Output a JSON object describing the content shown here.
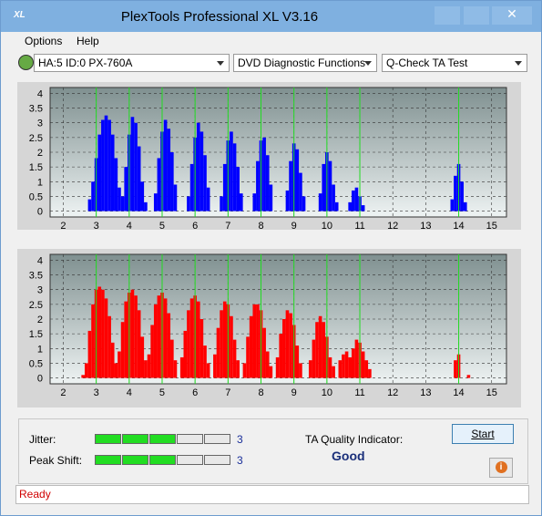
{
  "window": {
    "title": "PlexTools Professional XL V3.16"
  },
  "menu": [
    "Options",
    "Help"
  ],
  "toolbar": {
    "drive": "HA:5 ID:0  PX-760A",
    "function": "DVD Diagnostic Functions",
    "test": "Q-Check TA Test"
  },
  "chart_data": [
    {
      "type": "bar",
      "color": "#0000ff",
      "xlim": [
        1.6,
        15.45
      ],
      "ylim": [
        -0.2,
        4.2
      ],
      "xticks": [
        2,
        3,
        4,
        5,
        6,
        7,
        8,
        9,
        10,
        11,
        12,
        13,
        14,
        15
      ],
      "yticks": [
        0,
        0.5,
        1,
        1.5,
        2,
        2.5,
        3,
        3.5,
        4
      ],
      "markers": [
        3,
        4,
        5,
        6,
        7,
        8,
        9,
        10,
        11,
        14
      ],
      "grid": true,
      "x": [
        2.8,
        2.9,
        3.0,
        3.1,
        3.2,
        3.3,
        3.4,
        3.5,
        3.6,
        3.7,
        3.8,
        3.9,
        4.0,
        4.1,
        4.2,
        4.3,
        4.4,
        4.5,
        4.8,
        4.9,
        5.0,
        5.1,
        5.2,
        5.3,
        5.4,
        5.8,
        5.9,
        6.0,
        6.1,
        6.2,
        6.3,
        6.4,
        6.8,
        6.9,
        7.0,
        7.1,
        7.2,
        7.3,
        7.4,
        7.8,
        7.9,
        8.0,
        8.1,
        8.2,
        8.3,
        8.8,
        8.9,
        9.0,
        9.1,
        9.2,
        9.3,
        9.8,
        9.9,
        10.0,
        10.1,
        10.2,
        10.3,
        10.7,
        10.8,
        10.9,
        11.0,
        11.1,
        13.8,
        13.9,
        14.0,
        14.1,
        14.2
      ],
      "values": [
        0.4,
        1.0,
        1.8,
        2.6,
        3.1,
        3.25,
        3.1,
        2.6,
        1.8,
        0.8,
        0.5,
        1.5,
        2.6,
        3.2,
        3.0,
        2.2,
        1.0,
        0.3,
        0.6,
        1.8,
        2.7,
        3.1,
        2.8,
        2.0,
        0.9,
        0.5,
        1.6,
        2.5,
        3.0,
        2.7,
        1.9,
        0.8,
        0.5,
        1.6,
        2.4,
        2.7,
        2.3,
        1.5,
        0.6,
        0.6,
        1.7,
        2.4,
        2.5,
        1.9,
        0.9,
        0.7,
        1.7,
        2.3,
        2.1,
        1.3,
        0.5,
        0.6,
        1.6,
        2.0,
        1.7,
        0.9,
        0.3,
        0.3,
        0.7,
        0.8,
        0.5,
        0.2,
        0.4,
        1.2,
        1.6,
        1.0,
        0.3
      ]
    },
    {
      "type": "bar",
      "color": "#ff0000",
      "xlim": [
        1.6,
        15.45
      ],
      "ylim": [
        -0.2,
        4.2
      ],
      "xticks": [
        2,
        3,
        4,
        5,
        6,
        7,
        8,
        9,
        10,
        11,
        12,
        13,
        14,
        15
      ],
      "yticks": [
        0,
        0.5,
        1,
        1.5,
        2,
        2.5,
        3,
        3.5,
        4
      ],
      "markers": [
        3,
        4,
        5,
        6,
        7,
        8,
        9,
        10,
        11,
        14
      ],
      "grid": true,
      "x": [
        2.6,
        2.7,
        2.8,
        2.9,
        3.0,
        3.1,
        3.2,
        3.3,
        3.4,
        3.5,
        3.6,
        3.7,
        3.8,
        3.9,
        4.0,
        4.1,
        4.2,
        4.3,
        4.4,
        4.5,
        4.6,
        4.7,
        4.8,
        4.9,
        5.0,
        5.1,
        5.2,
        5.3,
        5.4,
        5.6,
        5.7,
        5.8,
        5.9,
        6.0,
        6.1,
        6.2,
        6.3,
        6.4,
        6.6,
        6.7,
        6.8,
        6.9,
        7.0,
        7.1,
        7.2,
        7.3,
        7.5,
        7.6,
        7.7,
        7.8,
        7.9,
        8.0,
        8.1,
        8.2,
        8.3,
        8.5,
        8.6,
        8.7,
        8.8,
        8.9,
        9.0,
        9.1,
        9.2,
        9.5,
        9.6,
        9.7,
        9.8,
        9.9,
        10.0,
        10.1,
        10.2,
        10.4,
        10.5,
        10.6,
        10.7,
        10.8,
        10.9,
        11.0,
        11.1,
        11.2,
        11.3,
        13.9,
        14.0,
        14.3
      ],
      "values": [
        0.1,
        0.5,
        1.6,
        2.5,
        3.0,
        3.1,
        3.0,
        2.7,
        2.1,
        1.2,
        0.5,
        0.9,
        1.9,
        2.6,
        2.9,
        3.0,
        2.8,
        2.3,
        1.4,
        0.6,
        0.8,
        1.8,
        2.5,
        2.8,
        2.9,
        2.7,
        2.2,
        1.3,
        0.6,
        0.7,
        1.6,
        2.3,
        2.7,
        2.8,
        2.6,
        2.0,
        1.1,
        0.5,
        0.8,
        1.7,
        2.3,
        2.6,
        2.5,
        2.1,
        1.3,
        0.6,
        0.5,
        1.4,
        2.1,
        2.5,
        2.5,
        2.3,
        1.7,
        0.9,
        0.4,
        0.7,
        1.5,
        2.0,
        2.3,
        2.2,
        1.8,
        1.1,
        0.5,
        0.6,
        1.3,
        1.9,
        2.1,
        1.9,
        1.4,
        0.7,
        0.4,
        0.6,
        0.8,
        0.9,
        0.7,
        1.0,
        1.3,
        1.2,
        0.9,
        0.6,
        0.3,
        0.6,
        0.8,
        0.1
      ]
    }
  ],
  "jitter": {
    "label": "Jitter:",
    "value": 3
  },
  "peak_shift": {
    "label": "Peak Shift:",
    "value": 3
  },
  "ta_quality": {
    "label": "TA Quality Indicator:",
    "value": "Good"
  },
  "start_button": "Start",
  "status": "Ready"
}
